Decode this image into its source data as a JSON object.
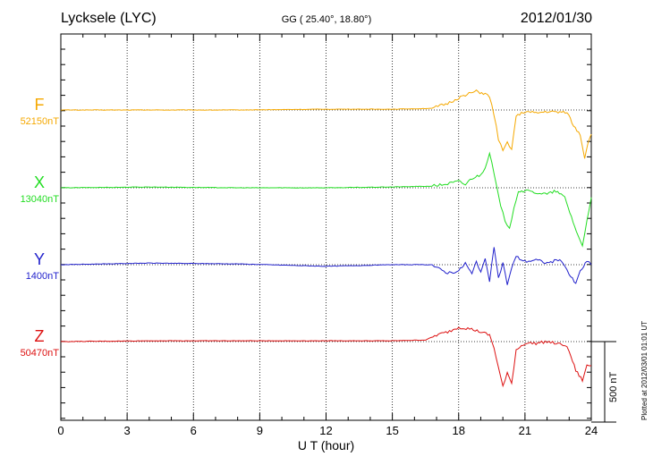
{
  "header": {
    "station": "Lycksele (LYC)",
    "coords": "GG ( 25.40°,  18.80°)",
    "date": "2012/01/30"
  },
  "footer_note": "Plotted at 2012/03/01 01:01 UT",
  "scale_label": "500 nT",
  "chart_data": {
    "type": "line",
    "xlabel": "U T (hour)",
    "xlim": [
      0,
      24
    ],
    "xticks": [
      "0",
      "3",
      "6",
      "9",
      "12",
      "15",
      "18",
      "21",
      "24"
    ],
    "scale_bar_nT": 500,
    "grid": true,
    "series": [
      {
        "name": "F",
        "baseline_label": "52150nT",
        "color": "#f5a800",
        "points": [
          [
            0,
            0
          ],
          [
            4,
            0
          ],
          [
            8,
            0
          ],
          [
            12,
            5
          ],
          [
            15,
            5
          ],
          [
            16.8,
            10
          ],
          [
            17.5,
            40
          ],
          [
            18,
            75
          ],
          [
            18.3,
            95
          ],
          [
            18.8,
            115
          ],
          [
            19.2,
            100
          ],
          [
            19.4,
            80
          ],
          [
            19.6,
            -30
          ],
          [
            19.8,
            -180
          ],
          [
            20,
            -260
          ],
          [
            20.2,
            -200
          ],
          [
            20.4,
            -240
          ],
          [
            20.6,
            -40
          ],
          [
            21,
            -10
          ],
          [
            21.5,
            -20
          ],
          [
            22,
            -10
          ],
          [
            22.5,
            -15
          ],
          [
            22.9,
            -10
          ],
          [
            23.2,
            -100
          ],
          [
            23.5,
            -150
          ],
          [
            23.7,
            -300
          ],
          [
            23.85,
            -200
          ],
          [
            24,
            -150
          ]
        ]
      },
      {
        "name": "X",
        "baseline_label": "13040nT",
        "color": "#22dd22",
        "points": [
          [
            0,
            0
          ],
          [
            4,
            5
          ],
          [
            8,
            0
          ],
          [
            12,
            0
          ],
          [
            15,
            5
          ],
          [
            16.8,
            10
          ],
          [
            17.5,
            25
          ],
          [
            18,
            40
          ],
          [
            18.3,
            20
          ],
          [
            18.6,
            60
          ],
          [
            19,
            80
          ],
          [
            19.2,
            130
          ],
          [
            19.4,
            220
          ],
          [
            19.5,
            150
          ],
          [
            19.7,
            20
          ],
          [
            19.9,
            -120
          ],
          [
            20.1,
            -200
          ],
          [
            20.3,
            -260
          ],
          [
            20.5,
            -120
          ],
          [
            20.7,
            -20
          ],
          [
            21,
            -20
          ],
          [
            21.5,
            -30
          ],
          [
            22,
            -40
          ],
          [
            22.4,
            -20
          ],
          [
            22.8,
            -60
          ],
          [
            23.1,
            -180
          ],
          [
            23.4,
            -300
          ],
          [
            23.6,
            -360
          ],
          [
            23.8,
            -200
          ],
          [
            24,
            -60
          ]
        ]
      },
      {
        "name": "Y",
        "baseline_label": "1400nT",
        "color": "#2222cc",
        "points": [
          [
            0,
            0
          ],
          [
            4,
            10
          ],
          [
            8,
            5
          ],
          [
            12,
            -10
          ],
          [
            15,
            0
          ],
          [
            16.8,
            0
          ],
          [
            17,
            -20
          ],
          [
            17.5,
            -50
          ],
          [
            18,
            -40
          ],
          [
            18.3,
            10
          ],
          [
            18.6,
            -60
          ],
          [
            18.8,
            20
          ],
          [
            19,
            -40
          ],
          [
            19.2,
            30
          ],
          [
            19.4,
            -100
          ],
          [
            19.6,
            100
          ],
          [
            19.8,
            -80
          ],
          [
            20,
            10
          ],
          [
            20.2,
            -120
          ],
          [
            20.4,
            -20
          ],
          [
            20.6,
            50
          ],
          [
            21,
            20
          ],
          [
            21.5,
            30
          ],
          [
            22,
            10
          ],
          [
            22.5,
            30
          ],
          [
            22.8,
            0
          ],
          [
            23,
            -60
          ],
          [
            23.3,
            -120
          ],
          [
            23.5,
            -40
          ],
          [
            23.8,
            20
          ],
          [
            24,
            0
          ]
        ]
      },
      {
        "name": "Z",
        "baseline_label": "50470nT",
        "color": "#dd1111",
        "points": [
          [
            0,
            0
          ],
          [
            4,
            5
          ],
          [
            8,
            5
          ],
          [
            12,
            5
          ],
          [
            15,
            5
          ],
          [
            16.5,
            10
          ],
          [
            17,
            40
          ],
          [
            17.5,
            60
          ],
          [
            18,
            90
          ],
          [
            18.5,
            80
          ],
          [
            19,
            60
          ],
          [
            19.4,
            40
          ],
          [
            19.6,
            -40
          ],
          [
            19.8,
            -160
          ],
          [
            20,
            -280
          ],
          [
            20.2,
            -200
          ],
          [
            20.4,
            -260
          ],
          [
            20.6,
            -50
          ],
          [
            21,
            -10
          ],
          [
            21.5,
            -10
          ],
          [
            22,
            0
          ],
          [
            22.5,
            -15
          ],
          [
            22.8,
            -20
          ],
          [
            23,
            -60
          ],
          [
            23.3,
            -180
          ],
          [
            23.6,
            -240
          ],
          [
            23.8,
            -150
          ],
          [
            24,
            -150
          ]
        ]
      }
    ]
  }
}
